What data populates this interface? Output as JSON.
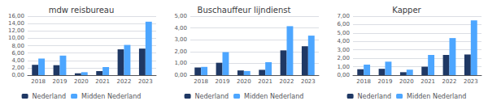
{
  "chart_data": [
    {
      "type": "bar",
      "title": "mdw reisbureau",
      "categories": [
        "2018",
        "2019",
        "2020",
        "2021",
        "2022",
        "2023"
      ],
      "series": [
        {
          "name": "Nederland",
          "color": "#1F3864",
          "values": [
            2.8,
            2.7,
            0.5,
            1.1,
            7.0,
            7.2
          ]
        },
        {
          "name": "Midden Nederland",
          "color": "#4DA6FF",
          "values": [
            4.5,
            5.3,
            0.8,
            2.2,
            8.2,
            14.5
          ]
        }
      ],
      "ylim": [
        0,
        16
      ],
      "yticks": [
        {
          "value": 0,
          "label": "0,00"
        },
        {
          "value": 2,
          "label": "2,00"
        },
        {
          "value": 4,
          "label": "4,00"
        },
        {
          "value": 6,
          "label": "6,00"
        },
        {
          "value": 8,
          "label": "8,00"
        },
        {
          "value": 10,
          "label": "10,00"
        },
        {
          "value": 12,
          "label": "12,00"
        },
        {
          "value": 14,
          "label": "14,00"
        },
        {
          "value": 16,
          "label": "16,00"
        }
      ],
      "grid": true,
      "legend": "bottom"
    },
    {
      "type": "bar",
      "title": "Buschauffeur lijndienst",
      "categories": [
        "2018",
        "2019",
        "2020",
        "2021",
        "2022",
        "2023"
      ],
      "series": [
        {
          "name": "Nederland",
          "color": "#1F3864",
          "values": [
            0.65,
            1.05,
            0.4,
            0.45,
            2.1,
            2.45
          ]
        },
        {
          "name": "Midden Nederland",
          "color": "#4DA6FF",
          "values": [
            0.7,
            1.95,
            0.35,
            1.1,
            4.15,
            3.35
          ]
        }
      ],
      "ylim": [
        0,
        5
      ],
      "yticks": [
        {
          "value": 0,
          "label": "0,00"
        },
        {
          "value": 1,
          "label": "1,00"
        },
        {
          "value": 2,
          "label": "2,00"
        },
        {
          "value": 3,
          "label": "3,00"
        },
        {
          "value": 4,
          "label": "4,00"
        },
        {
          "value": 5,
          "label": "5,00"
        }
      ],
      "grid": true,
      "legend": "bottom"
    },
    {
      "type": "bar",
      "title": "Kapper",
      "categories": [
        "2018",
        "2019",
        "2020",
        "2021",
        "2022",
        "2023"
      ],
      "series": [
        {
          "name": "Nederland",
          "color": "#1F3864",
          "values": [
            0.7,
            0.75,
            0.35,
            1.0,
            2.4,
            2.45
          ]
        },
        {
          "name": "Midden Nederland",
          "color": "#4DA6FF",
          "values": [
            1.25,
            1.6,
            0.65,
            2.4,
            4.4,
            6.5
          ]
        }
      ],
      "ylim": [
        0,
        7
      ],
      "yticks": [
        {
          "value": 0,
          "label": "0,00"
        },
        {
          "value": 1,
          "label": "1,00"
        },
        {
          "value": 2,
          "label": "2,00"
        },
        {
          "value": 3,
          "label": "3,00"
        },
        {
          "value": 4,
          "label": "4,00"
        },
        {
          "value": 5,
          "label": "5,00"
        },
        {
          "value": 6,
          "label": "6,00"
        },
        {
          "value": 7,
          "label": "7,00"
        }
      ],
      "grid": true,
      "legend": "bottom"
    }
  ]
}
